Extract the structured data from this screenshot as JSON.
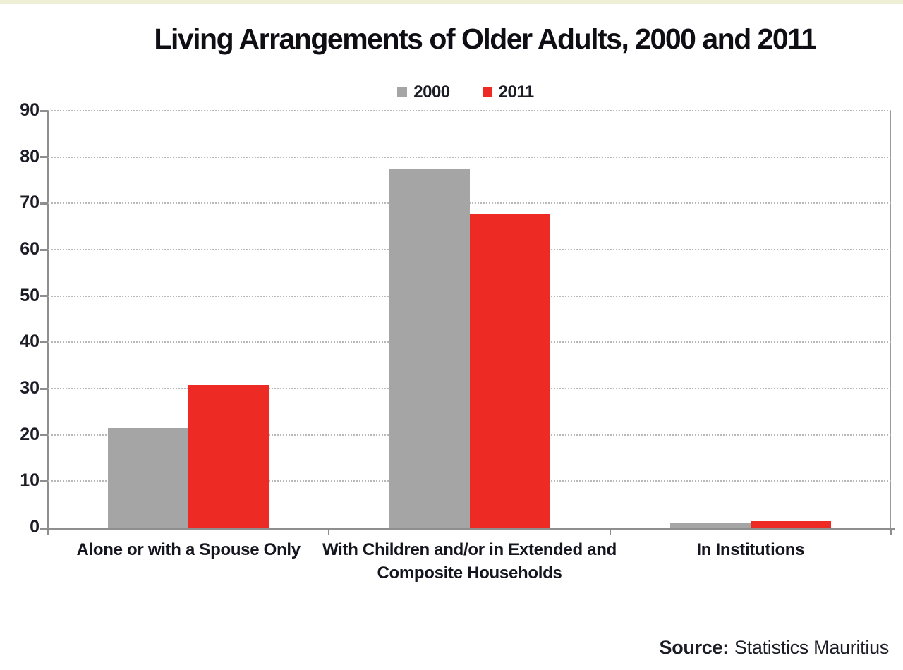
{
  "page": {
    "top_strip_color": "#eef0d5",
    "background_color": "#ffffff"
  },
  "chart_data": {
    "type": "bar",
    "title": "Living Arrangements of Older Adults, 2000 and 2011",
    "categories": [
      "Alone or with a Spouse Only",
      "With Children and/or in Extended and Composite Households",
      "In Institutions"
    ],
    "series": [
      {
        "name": "2000",
        "color": "#a6a5a5",
        "values": [
          21.4,
          77.3,
          1.0
        ]
      },
      {
        "name": "2011",
        "color": "#ed2a24",
        "values": [
          30.7,
          67.7,
          1.3
        ]
      }
    ],
    "ylim": [
      0,
      90
    ],
    "yticks": [
      0,
      10,
      20,
      30,
      40,
      50,
      60,
      70,
      80,
      90
    ],
    "xlabel": "",
    "ylabel": "",
    "grid": "horizontal-dotted",
    "legend_position": "top-center",
    "axis_color": "#8e8e8e",
    "grid_color": "#b8b8b8"
  },
  "source": {
    "label": "Source:",
    "text": "Statistics Mauritius"
  }
}
